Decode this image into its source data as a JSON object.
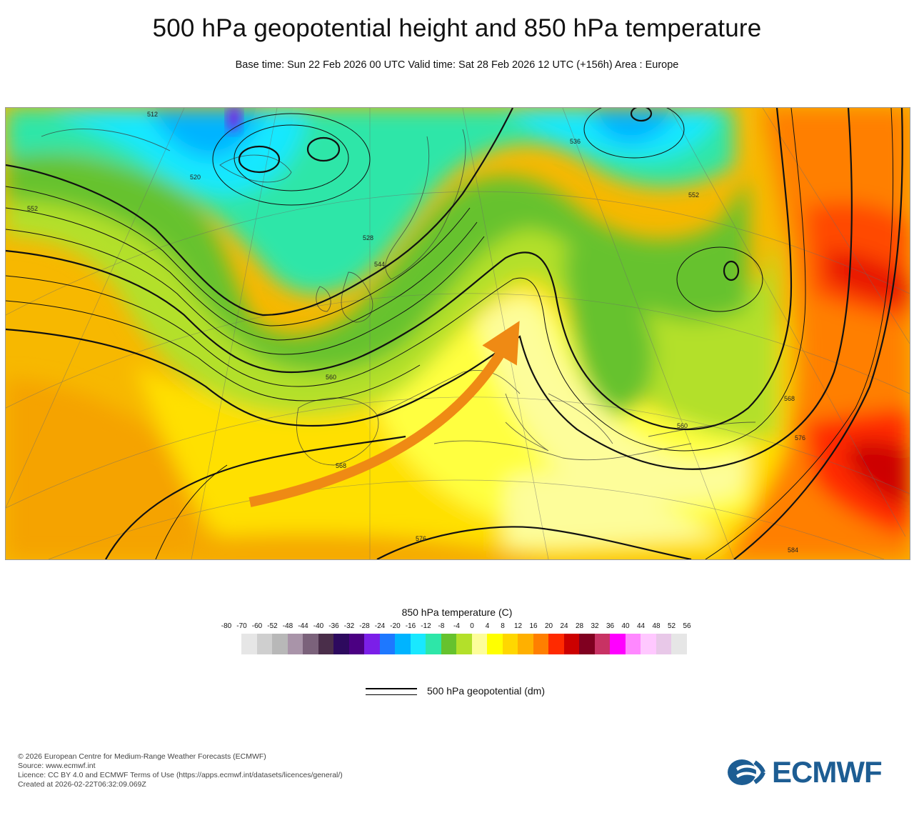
{
  "header": {
    "title": "500 hPa geopotential height and 850 hPa temperature",
    "subtitle": "Base time: Sun 22 Feb 2026 00 UTC Valid time: Sat 28 Feb 2026 12 UTC (+156h) Area : Europe"
  },
  "map": {
    "area": "Europe",
    "contour_labels": [
      "512",
      "520",
      "528",
      "536",
      "544",
      "552",
      "560",
      "568",
      "576",
      "584"
    ],
    "annotation": "orange arrow indicating warm air advection from North Africa toward central Europe"
  },
  "legend": {
    "title": "850 hPa temperature (C)",
    "ticks": [
      "-80",
      "-70",
      "-60",
      "-52",
      "-48",
      "-44",
      "-40",
      "-36",
      "-32",
      "-28",
      "-24",
      "-20",
      "-16",
      "-12",
      "-8",
      "-4",
      "0",
      "4",
      "8",
      "12",
      "16",
      "20",
      "24",
      "28",
      "32",
      "36",
      "40",
      "44",
      "48",
      "52",
      "56"
    ],
    "colors": [
      "#e6e6e6",
      "#cfcfcf",
      "#b8b8b8",
      "#a994a9",
      "#7b627b",
      "#4a2e4a",
      "#2d0a5e",
      "#4b0082",
      "#7b1fe8",
      "#1e78ff",
      "#00b4ff",
      "#19e8ff",
      "#2ee6a8",
      "#66c22e",
      "#b3e02a",
      "#fdfd9a",
      "#ffff00",
      "#ffd700",
      "#ffb000",
      "#ff7f00",
      "#ff2a00",
      "#cc0000",
      "#800020",
      "#c83264",
      "#ff00ff",
      "#ff88ff",
      "#ffc8ff",
      "#e8c8e8",
      "#e6e6e6"
    ],
    "line_label": "500 hPa geopotential (dm)"
  },
  "footer": {
    "line1": "© 2026 European Centre for Medium-Range Weather Forecasts (ECMWF)",
    "line2": "Source: www.ecmwf.int",
    "line3": "Licence: CC BY 4.0 and ECMWF Terms of Use (https://apps.ecmwf.int/datasets/licences/general/)",
    "line4": "Created at 2026-02-22T06:32:09.069Z"
  },
  "logo": {
    "text": "ECMWF",
    "color": "#1d5d93"
  }
}
